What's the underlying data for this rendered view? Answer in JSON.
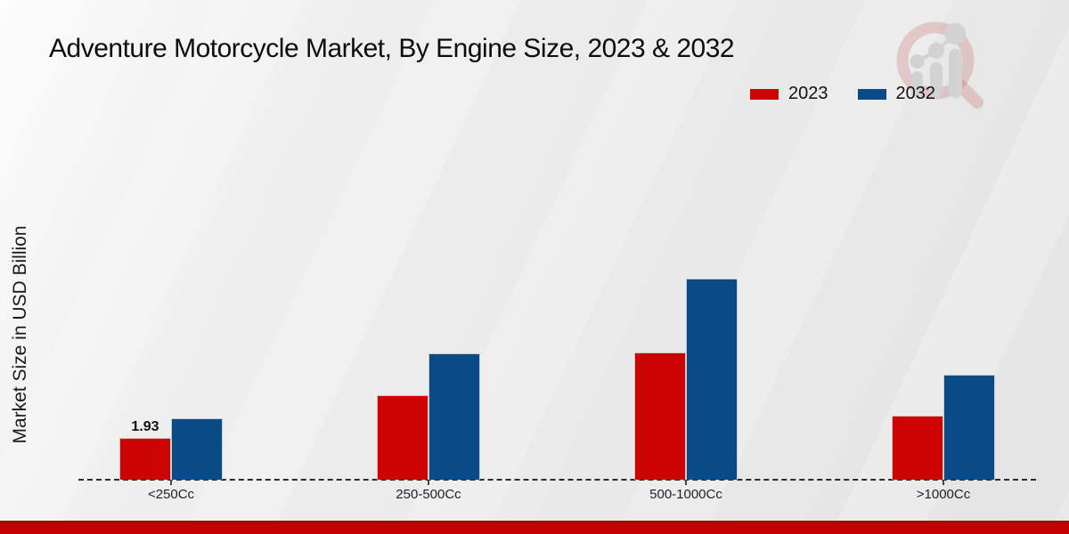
{
  "title": "Adventure Motorcycle Market, By Engine Size, 2023 & 2032",
  "y_axis_label": "Market Size in USD Billion",
  "watermark_icon": "magnifier-bar-chart-logo",
  "colors": {
    "series_2023": "#cc0404",
    "series_2032": "#0a4b87",
    "footer_band": "#c40101",
    "baseline": "#2b2b2b"
  },
  "chart_data": {
    "type": "bar",
    "title": "Adventure Motorcycle Market, By Engine Size, 2023 & 2032",
    "xlabel": "",
    "ylabel": "Market Size in USD Billion",
    "categories": [
      "<250Cc",
      "250-500Cc",
      "500-1000Cc",
      ">1000Cc"
    ],
    "series": [
      {
        "name": "2023",
        "color": "#cc0404",
        "values": [
          1.93,
          3.9,
          5.9,
          2.95
        ]
      },
      {
        "name": "2032",
        "color": "#0a4b87",
        "values": [
          2.85,
          5.85,
          9.3,
          4.85
        ]
      }
    ],
    "bar_labels": [
      {
        "series": "2023",
        "category": "<250Cc",
        "text": "1.93"
      }
    ],
    "ylim": [
      0,
      10.5
    ],
    "grid": false,
    "y_axis_ticks_visible": false,
    "baseline_style": "dashed",
    "legend_position": "top-right"
  }
}
